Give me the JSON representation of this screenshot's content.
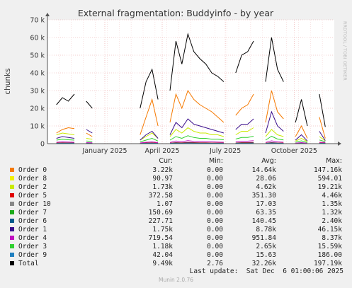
{
  "chart_data": {
    "type": "line",
    "title": "External fragmentation: Buddyinfo - by year",
    "ylabel": "chunks",
    "side_label": "RRDTOOL / TOBI OETIKER",
    "ylim": [
      0,
      70000
    ],
    "y_ticks": [
      0,
      10000,
      20000,
      30000,
      40000,
      50000,
      60000,
      70000
    ],
    "y_tick_labels": [
      "0",
      "10 k",
      "20 k",
      "30 k",
      "40 k",
      "50 k",
      "60 k",
      "70 k"
    ],
    "x_tick_labels": [
      "January 2025",
      "April 2025",
      "July 2025",
      "October 2025"
    ],
    "grid": true,
    "legend_headers": {
      "cur": "Cur:",
      "min": "Min:",
      "avg": "Avg:",
      "max": "Max:"
    },
    "series": [
      {
        "name": "Order 0",
        "color": "#f57900",
        "cur": "3.22k",
        "min": "0.00",
        "avg": "14.64k",
        "max": "147.16k",
        "values": [
          0,
          6000,
          8000,
          9000,
          8500,
          0,
          6000,
          4000,
          0,
          0,
          0,
          0,
          0,
          0,
          0,
          5000,
          15000,
          25000,
          10000,
          0,
          12000,
          28000,
          20000,
          30000,
          25000,
          22000,
          20000,
          18000,
          15000,
          12000,
          0,
          16000,
          20000,
          22000,
          28000,
          0,
          12000,
          30000,
          18000,
          14000,
          0,
          4000,
          10000,
          3000,
          0,
          15000,
          3000,
          0
        ]
      },
      {
        "name": "Order 8",
        "color": "#f0f000",
        "cur": "90.97",
        "min": "0.00",
        "avg": "28.06",
        "max": "594.01",
        "values": [
          0,
          200,
          300,
          250,
          200,
          0,
          100,
          80,
          0,
          0,
          0,
          0,
          0,
          0,
          0,
          50,
          200,
          300,
          100,
          0,
          200,
          400,
          300,
          500,
          400,
          300,
          300,
          200,
          200,
          200,
          0,
          300,
          400,
          400,
          500,
          0,
          200,
          500,
          300,
          200,
          0,
          50,
          150,
          40,
          0,
          200,
          90,
          0
        ]
      },
      {
        "name": "Order 2",
        "color": "#c9e900",
        "cur": "1.73k",
        "min": "0.00",
        "avg": "4.62k",
        "max": "19.21k",
        "values": [
          0,
          5000,
          6000,
          5500,
          5000,
          0,
          3000,
          2500,
          0,
          0,
          0,
          0,
          0,
          0,
          0,
          2000,
          4000,
          6000,
          3000,
          0,
          4000,
          8000,
          6000,
          9000,
          7000,
          6000,
          6000,
          5000,
          5000,
          4000,
          0,
          5000,
          7000,
          7000,
          9000,
          0,
          4000,
          8000,
          5000,
          4000,
          0,
          1500,
          3000,
          1200,
          0,
          4000,
          1700,
          0
        ]
      },
      {
        "name": "Order 5",
        "color": "#e00000",
        "cur": "372.58",
        "min": "0.00",
        "avg": "351.30",
        "max": "4.46k",
        "values": [
          0,
          400,
          500,
          450,
          400,
          0,
          300,
          250,
          0,
          0,
          0,
          0,
          0,
          0,
          0,
          200,
          400,
          500,
          300,
          0,
          300,
          600,
          500,
          700,
          600,
          500,
          500,
          400,
          400,
          350,
          0,
          400,
          600,
          600,
          700,
          0,
          300,
          600,
          400,
          350,
          0,
          150,
          300,
          120,
          0,
          350,
          370,
          0
        ]
      },
      {
        "name": "Order 10",
        "color": "#888888",
        "cur": "1.07",
        "min": "0.00",
        "avg": "17.03",
        "max": "1.35k",
        "values": [
          0,
          20,
          25,
          20,
          18,
          0,
          15,
          10,
          0,
          0,
          0,
          0,
          0,
          0,
          0,
          10,
          20,
          30,
          15,
          0,
          15,
          30,
          20,
          35,
          25,
          20,
          20,
          18,
          15,
          15,
          0,
          20,
          25,
          25,
          30,
          0,
          15,
          30,
          20,
          15,
          0,
          5,
          10,
          4,
          0,
          10,
          1,
          0
        ]
      },
      {
        "name": "Order 7",
        "color": "#1aaa1a",
        "cur": "150.69",
        "min": "0.00",
        "avg": "63.35",
        "max": "1.32k",
        "values": [
          0,
          150,
          200,
          180,
          160,
          0,
          100,
          80,
          0,
          0,
          0,
          0,
          0,
          0,
          0,
          60,
          150,
          200,
          100,
          0,
          120,
          250,
          180,
          300,
          220,
          200,
          180,
          160,
          150,
          130,
          0,
          160,
          220,
          220,
          280,
          0,
          120,
          260,
          160,
          130,
          0,
          50,
          100,
          40,
          0,
          130,
          150,
          0
        ]
      },
      {
        "name": "Order 6",
        "color": "#005a8c",
        "cur": "227.71",
        "min": "0.00",
        "avg": "140.45",
        "max": "2.40k",
        "values": [
          0,
          250,
          300,
          280,
          260,
          0,
          180,
          150,
          0,
          0,
          0,
          0,
          0,
          0,
          0,
          100,
          250,
          300,
          150,
          0,
          200,
          400,
          300,
          450,
          350,
          300,
          300,
          250,
          250,
          220,
          0,
          260,
          350,
          350,
          420,
          0,
          200,
          420,
          260,
          210,
          0,
          80,
          160,
          60,
          0,
          210,
          228,
          0
        ]
      },
      {
        "name": "Order 1",
        "color": "#3a0e8c",
        "cur": "1.75k",
        "min": "0.00",
        "avg": "8.78k",
        "max": "46.15k",
        "values": [
          0,
          3000,
          4000,
          3500,
          3000,
          0,
          8000,
          6000,
          0,
          0,
          0,
          0,
          0,
          0,
          0,
          2000,
          5000,
          7000,
          3000,
          0,
          5000,
          12000,
          9000,
          14000,
          11000,
          10000,
          9000,
          8000,
          7000,
          6000,
          0,
          8000,
          11000,
          11000,
          14000,
          0,
          6000,
          18000,
          10000,
          7000,
          0,
          2000,
          5000,
          1500,
          0,
          7000,
          1750,
          0
        ]
      },
      {
        "name": "Order 4",
        "color": "#c010c0",
        "cur": "719.54",
        "min": "0.00",
        "avg": "951.84",
        "max": "8.37k",
        "values": [
          0,
          800,
          1000,
          900,
          800,
          0,
          600,
          500,
          0,
          0,
          0,
          0,
          0,
          0,
          0,
          400,
          800,
          1000,
          600,
          0,
          700,
          1500,
          1100,
          1700,
          1300,
          1200,
          1100,
          1000,
          900,
          800,
          0,
          1000,
          1400,
          1400,
          1700,
          0,
          700,
          1600,
          1000,
          800,
          0,
          300,
          600,
          250,
          0,
          800,
          720,
          0
        ]
      },
      {
        "name": "Order 3",
        "color": "#30d030",
        "cur": "1.18k",
        "min": "0.00",
        "avg": "2.65k",
        "max": "15.59k",
        "values": [
          0,
          2000,
          2500,
          2200,
          2000,
          0,
          1500,
          1200,
          0,
          0,
          0,
          0,
          0,
          0,
          0,
          1000,
          2000,
          3000,
          1500,
          0,
          2000,
          4000,
          3000,
          4500,
          3500,
          3000,
          3000,
          2500,
          2500,
          2200,
          0,
          2600,
          3500,
          3500,
          4200,
          0,
          2000,
          4200,
          2600,
          2100,
          0,
          800,
          1600,
          600,
          0,
          2100,
          1180,
          0
        ]
      },
      {
        "name": "Order 9",
        "color": "#2080c0",
        "cur": "42.04",
        "min": "0.00",
        "avg": "15.63",
        "max": "186.00",
        "values": [
          0,
          30,
          40,
          35,
          30,
          0,
          20,
          15,
          0,
          0,
          0,
          0,
          0,
          0,
          0,
          10,
          30,
          40,
          20,
          0,
          25,
          50,
          35,
          60,
          45,
          40,
          35,
          30,
          30,
          25,
          0,
          30,
          45,
          45,
          55,
          0,
          25,
          50,
          30,
          25,
          0,
          10,
          20,
          8,
          0,
          25,
          42,
          0
        ]
      },
      {
        "name": "Total",
        "color": "#000000",
        "cur": "9.49k",
        "min": "2.76",
        "avg": "32.26k",
        "max": "197.19k",
        "values": [
          0,
          22000,
          26000,
          24000,
          28000,
          0,
          24000,
          20000,
          0,
          0,
          0,
          0,
          0,
          0,
          0,
          20000,
          35000,
          42000,
          25000,
          0,
          30000,
          58000,
          45000,
          62000,
          52000,
          48000,
          45000,
          40000,
          38000,
          35000,
          0,
          40000,
          50000,
          52000,
          58000,
          0,
          35000,
          60000,
          42000,
          35000,
          0,
          12000,
          25000,
          10000,
          0,
          28000,
          9490,
          0
        ]
      }
    ]
  },
  "footer": {
    "last_update": "Last update:  Sat Dec  6 01:00:06 2025",
    "version": "Munin 2.0.76"
  }
}
